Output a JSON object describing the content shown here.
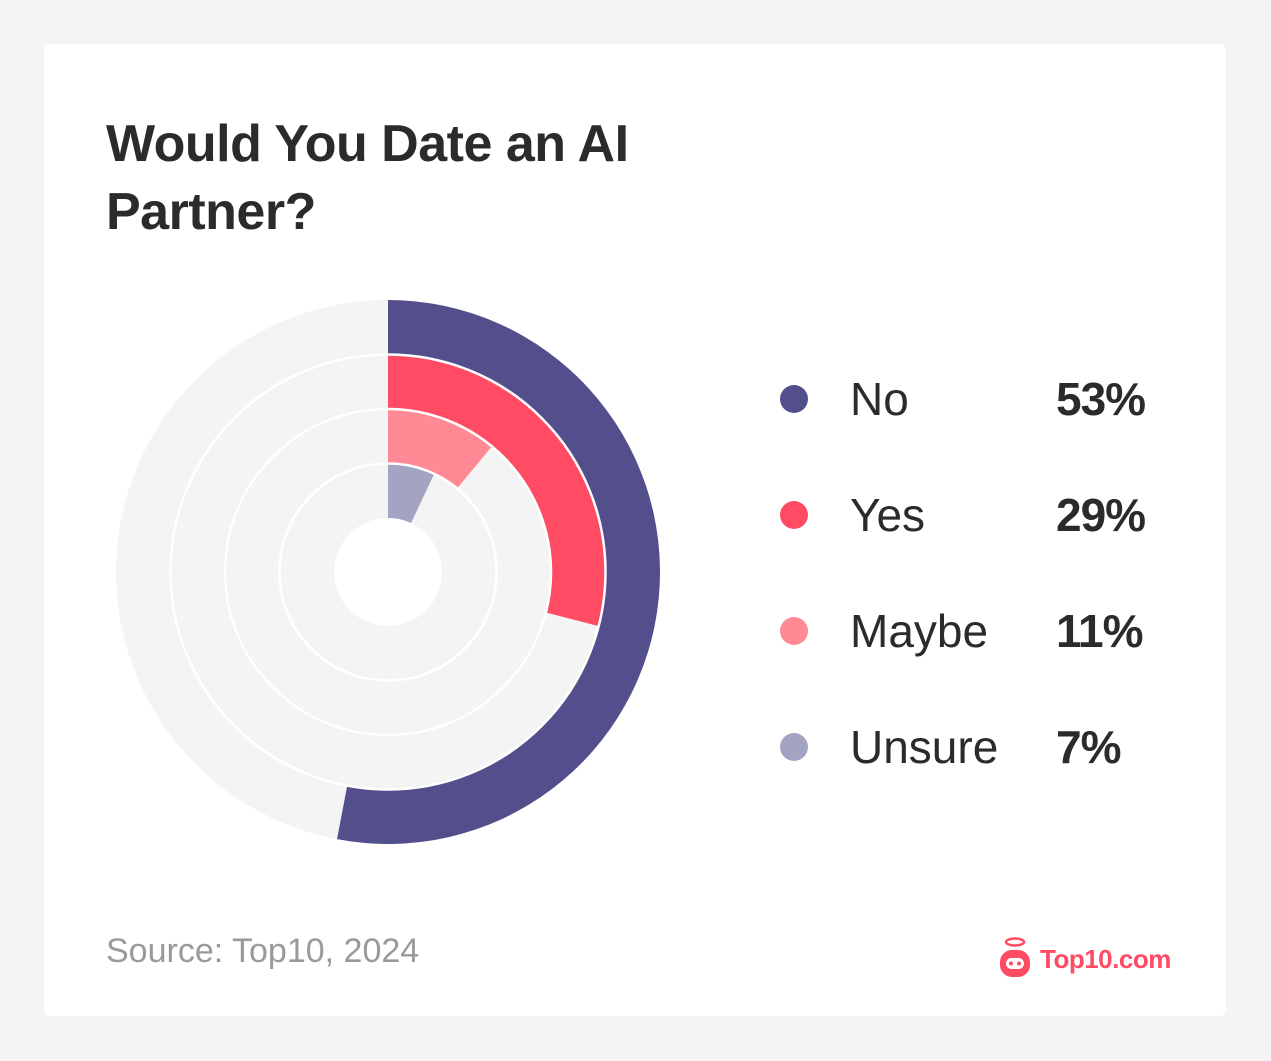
{
  "title": "Would You Date an AI Partner?",
  "source": "Source: Top10, 2024",
  "logo": {
    "icon": "robot-halo-icon",
    "text": "Top10.com",
    "color": "#FF4B64"
  },
  "legend": [
    {
      "label": "No",
      "value": "53%",
      "color": "#524F8C"
    },
    {
      "label": "Yes",
      "value": "29%",
      "color": "#FF4B64"
    },
    {
      "label": "Maybe",
      "value": "11%",
      "color": "#FF8A96"
    },
    {
      "label": "Unsure",
      "value": "7%",
      "color": "#A3A3C2"
    }
  ],
  "chart_data": {
    "type": "radial-bar",
    "title": "Would You Date an AI Partner?",
    "categories": [
      "No",
      "Yes",
      "Maybe",
      "Unsure"
    ],
    "values": [
      53,
      29,
      11,
      7
    ],
    "unit": "%",
    "colors": [
      "#524F8C",
      "#FF4B64",
      "#FF8A96",
      "#A3A3C2"
    ],
    "track_color": "#F4F4F4",
    "ring_order": "outer-to-inner",
    "start_angle": "12 o'clock, clockwise",
    "legend_position": "right",
    "source": "Top10, 2024"
  }
}
